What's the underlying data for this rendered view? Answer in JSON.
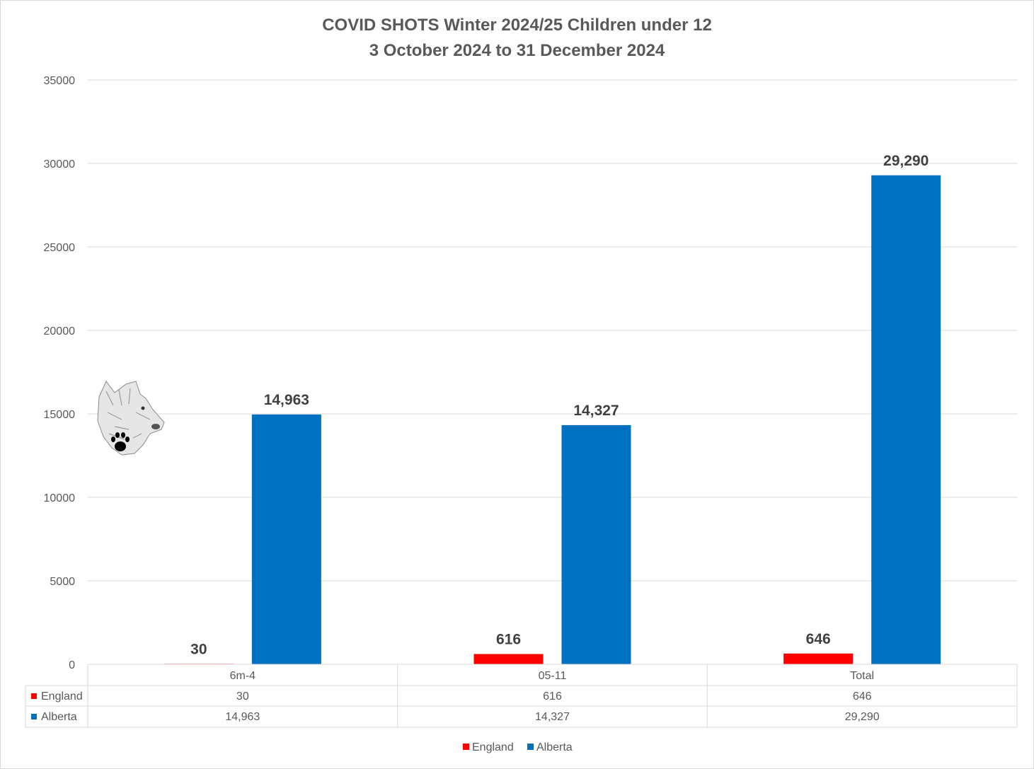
{
  "chart_data": {
    "type": "bar",
    "title_line1": "COVID SHOTS Winter 2024/25 Children under 12",
    "title_line2": "3 October 2024 to 31 December 2024",
    "categories": [
      "6m-4",
      "05-11",
      "Total"
    ],
    "series": [
      {
        "name": "England",
        "color": "#ff0000",
        "values": [
          30,
          616,
          646
        ],
        "labels": [
          "30",
          "616",
          "646"
        ]
      },
      {
        "name": "Alberta",
        "color": "#0070c0",
        "values": [
          14963,
          14327,
          29290
        ],
        "labels": [
          "14,963",
          "14,327",
          "29,290"
        ]
      }
    ],
    "ylim": [
      0,
      35000
    ],
    "yticks": [
      0,
      5000,
      10000,
      15000,
      20000,
      25000,
      30000,
      35000
    ],
    "grid": true,
    "data_table": true,
    "legend_position": "bottom"
  },
  "logo": {
    "icon": "wolf-head-paw-logo"
  }
}
